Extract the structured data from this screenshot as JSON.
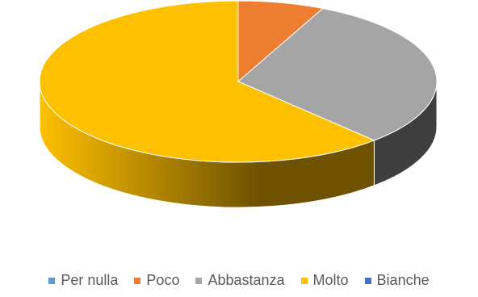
{
  "chart_data": {
    "type": "pie",
    "variant": "3d",
    "title": "",
    "legend_position": "bottom",
    "slices": [
      {
        "label": "Per nulla",
        "value": 0,
        "color": "#5B9BD5",
        "side_dark": "#2E5A80"
      },
      {
        "label": "Poco",
        "value": 7,
        "color": "#ED7D31",
        "side_dark": "#8A4516"
      },
      {
        "label": "Abbastanza",
        "value": 31,
        "color": "#A5A5A5",
        "side_dark": "#3F3F3F"
      },
      {
        "label": "Molto",
        "value": 62,
        "color": "#FFC000",
        "side_dark": "#6E5200"
      },
      {
        "label": "Bianche",
        "value": 0,
        "color": "#4472C4",
        "side_dark": "#223A66"
      }
    ]
  }
}
